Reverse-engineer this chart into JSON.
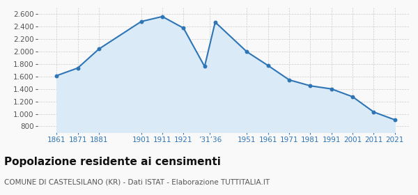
{
  "years": [
    1861,
    1871,
    1881,
    1901,
    1911,
    1921,
    1931,
    1936,
    1951,
    1961,
    1971,
    1981,
    1991,
    2001,
    2011,
    2021
  ],
  "population": [
    1613,
    1735,
    2040,
    2480,
    2560,
    2375,
    1760,
    2470,
    1995,
    1775,
    1545,
    1450,
    1400,
    1275,
    1030,
    905
  ],
  "ylim": [
    700,
    2700
  ],
  "yticks": [
    800,
    1000,
    1200,
    1400,
    1600,
    1800,
    2000,
    2200,
    2400,
    2600
  ],
  "line_color": "#2e75b6",
  "fill_color": "#daeaf7",
  "marker_color": "#2e75b6",
  "bg_color": "#f9f9f9",
  "grid_color": "#cccccc",
  "title": "Popolazione residente ai censimenti",
  "subtitle": "COMUNE DI CASTELSILANO (KR) - Dati ISTAT - Elaborazione TUTTITALIA.IT",
  "title_fontsize": 11,
  "subtitle_fontsize": 7.5,
  "tick_color": "#2e75b6",
  "tick_fontsize": 7.5,
  "xlim_left": 1852,
  "xlim_right": 2028
}
